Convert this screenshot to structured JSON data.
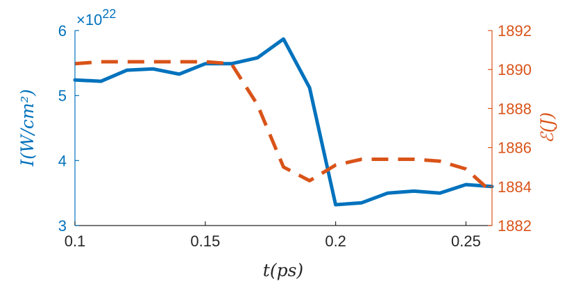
{
  "chart_data": {
    "type": "line",
    "xlabel": "t(ps)",
    "xlim": [
      0.1,
      0.26
    ],
    "xticks": [
      "0.1",
      "0.15",
      "0.2",
      "0.25"
    ],
    "xtick_values": [
      0.1,
      0.15,
      0.2,
      0.25
    ],
    "left_axis": {
      "label": "I(W/cm²)",
      "exponent_label": "×10",
      "exponent": "22",
      "ylim": [
        3,
        6
      ],
      "ticks": [
        "3",
        "4",
        "5",
        "6"
      ],
      "tick_values": [
        3,
        4,
        5,
        6
      ],
      "color": "#0072BD"
    },
    "right_axis": {
      "label": "ℰ(J)",
      "ylim": [
        1882,
        1892
      ],
      "ticks": [
        "1882",
        "1884",
        "1886",
        "1888",
        "1890",
        "1892"
      ],
      "tick_values": [
        1882,
        1884,
        1886,
        1888,
        1890,
        1892
      ],
      "color": "#D95319"
    },
    "series": [
      {
        "axis": "left",
        "style": "solid",
        "color": "#0072BD",
        "x": [
          0.1,
          0.11,
          0.12,
          0.13,
          0.14,
          0.15,
          0.16,
          0.17,
          0.18,
          0.19,
          0.2,
          0.21,
          0.22,
          0.23,
          0.24,
          0.25,
          0.26
        ],
        "y": [
          5.24,
          5.22,
          5.39,
          5.41,
          5.33,
          5.49,
          5.49,
          5.58,
          5.87,
          5.12,
          3.32,
          3.35,
          3.5,
          3.53,
          3.5,
          3.63,
          3.6
        ]
      },
      {
        "axis": "right",
        "style": "dashed",
        "color": "#D95319",
        "x": [
          0.1,
          0.11,
          0.12,
          0.13,
          0.14,
          0.15,
          0.16,
          0.17,
          0.18,
          0.19,
          0.2,
          0.21,
          0.22,
          0.23,
          0.24,
          0.25,
          0.26
        ],
        "y": [
          1890.3,
          1890.4,
          1890.4,
          1890.4,
          1890.4,
          1890.4,
          1890.3,
          1888.2,
          1885.0,
          1884.3,
          1885.1,
          1885.4,
          1885.4,
          1885.4,
          1885.3,
          1884.9,
          1883.7
        ]
      }
    ],
    "grid": false,
    "legend": "none"
  }
}
